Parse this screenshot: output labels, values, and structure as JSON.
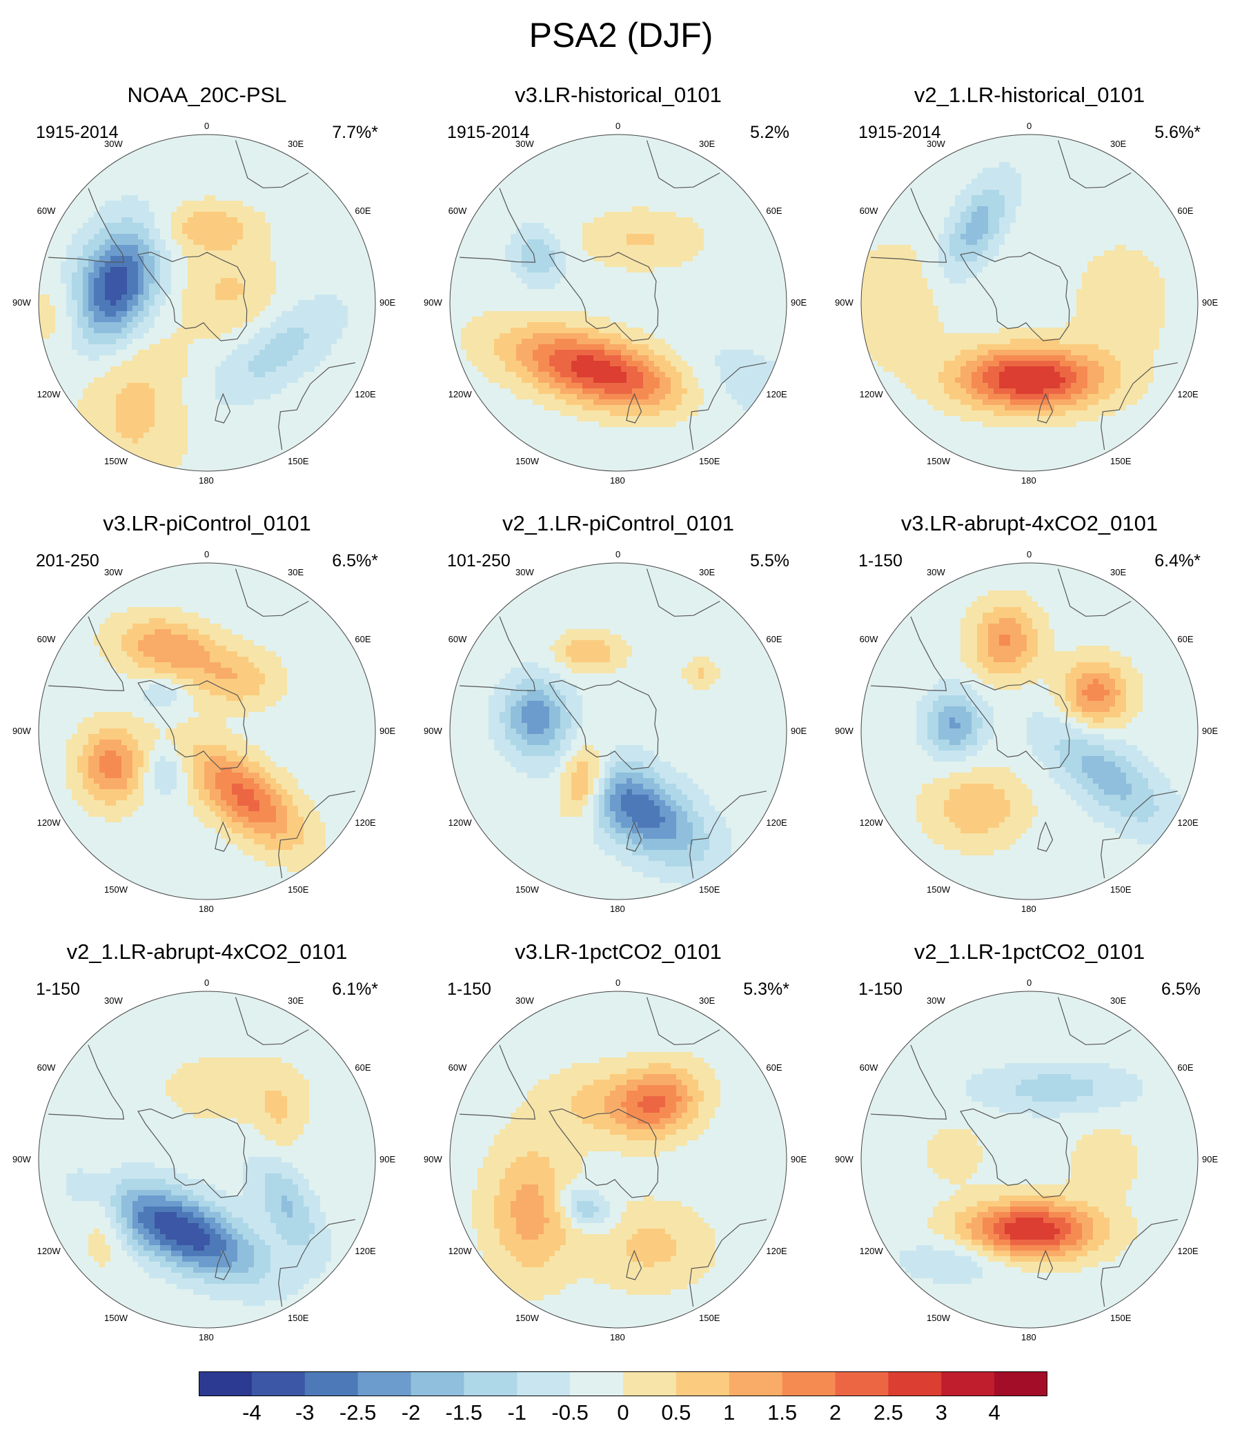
{
  "figure_title": "PSA2 (DJF)",
  "colors": {
    "-4": "#2c3a92",
    "-3": "#3b57a5",
    "-2.5": "#4e79b8",
    "-2": "#6c9ccd",
    "-1.5": "#8fbfdc",
    "-1": "#aed7e8",
    "-0.5": "#c9e6f0",
    "0": "#e1f1ef",
    "0.5": "#f7e4a8",
    "1": "#fbcc7f",
    "1.5": "#f9ac67",
    "2": "#f68b52",
    "2.5": "#ec6644",
    "3": "#dc3e31",
    "4": "#c01d2d",
    "5": "#a30d27",
    "coast": "#555555"
  },
  "lon_labels": {
    "top": "0",
    "bottom": "180",
    "left_30": "30W",
    "right_30": "30E",
    "left_60": "60W",
    "right_60": "60E",
    "left_90": "90W",
    "right_90": "90E",
    "left_120": "120W",
    "right_120": "120E",
    "left_150": "150W",
    "right_150": "150E"
  },
  "panels": [
    {
      "title": "NOAA_20C-PSL",
      "period": "1915-2014",
      "variance": "7.7%*",
      "features": [
        {
          "lon": 280,
          "r": 0.55,
          "sx": 0.16,
          "sy": 0.25,
          "rot": 20,
          "amp": -3.2
        },
        {
          "lon": 0,
          "r": 0.45,
          "sx": 0.2,
          "sy": 0.1,
          "rot": 0,
          "amp": 1.1
        },
        {
          "lon": 125,
          "r": 0.5,
          "sx": 0.3,
          "sy": 0.13,
          "rot": -35,
          "amp": -1.0
        },
        {
          "lon": 215,
          "r": 0.75,
          "sx": 0.22,
          "sy": 0.35,
          "rot": 0,
          "amp": 0.9
        },
        {
          "lon": 60,
          "r": 0.15,
          "sx": 0.2,
          "sy": 0.2,
          "rot": 0,
          "amp": 0.8
        },
        {
          "lon": 265,
          "r": 0.9,
          "sx": 0.15,
          "sy": 0.15,
          "rot": 0,
          "amp": 0.6
        }
      ]
    },
    {
      "title": "v3.LR-historical_0101",
      "period": "1915-2014",
      "variance": "5.2%",
      "features": [
        {
          "lon": 195,
          "r": 0.42,
          "sx": 0.38,
          "sy": 0.14,
          "rot": 15,
          "amp": 3.1
        },
        {
          "lon": 300,
          "r": 0.55,
          "sx": 0.1,
          "sy": 0.12,
          "rot": -30,
          "amp": -1.2
        },
        {
          "lon": 20,
          "r": 0.4,
          "sx": 0.25,
          "sy": 0.12,
          "rot": 0,
          "amp": 0.8
        },
        {
          "lon": 130,
          "r": 0.8,
          "sx": 0.3,
          "sy": 0.2,
          "rot": 0,
          "amp": -0.6
        }
      ]
    },
    {
      "title": "v2_1.LR-historical_0101",
      "period": "1915-2014",
      "variance": "5.6%*",
      "features": [
        {
          "lon": 180,
          "r": 0.45,
          "sx": 0.3,
          "sy": 0.13,
          "rot": 0,
          "amp": 3.4
        },
        {
          "lon": 325,
          "r": 0.55,
          "sx": 0.1,
          "sy": 0.22,
          "rot": 30,
          "amp": -1.5
        },
        {
          "lon": 90,
          "r": 0.55,
          "sx": 0.2,
          "sy": 0.25,
          "rot": 0,
          "amp": 0.6
        },
        {
          "lon": 270,
          "r": 0.8,
          "sx": 0.2,
          "sy": 0.25,
          "rot": 0,
          "amp": 0.7
        }
      ]
    },
    {
      "title": "v3.LR-piControl_0101",
      "period": "201-250",
      "variance": "6.5%*",
      "features": [
        {
          "lon": 150,
          "r": 0.45,
          "sx": 0.28,
          "sy": 0.13,
          "rot": 40,
          "amp": 2.4
        },
        {
          "lon": 250,
          "r": 0.6,
          "sx": 0.14,
          "sy": 0.16,
          "rot": 0,
          "amp": 2.0
        },
        {
          "lon": 335,
          "r": 0.55,
          "sx": 0.22,
          "sy": 0.12,
          "rot": 10,
          "amp": 1.7
        },
        {
          "lon": 225,
          "r": 0.35,
          "sx": 0.09,
          "sy": 0.1,
          "rot": 0,
          "amp": -1.0
        },
        {
          "lon": 30,
          "r": 0.35,
          "sx": 0.18,
          "sy": 0.12,
          "rot": 0,
          "amp": 1.1
        },
        {
          "lon": 310,
          "r": 0.35,
          "sx": 0.09,
          "sy": 0.06,
          "rot": 0,
          "amp": -0.8
        }
      ]
    },
    {
      "title": "v2_1.LR-piControl_0101",
      "period": "101-250",
      "variance": "5.5%",
      "features": [
        {
          "lon": 165,
          "r": 0.48,
          "sx": 0.3,
          "sy": 0.15,
          "rot": 35,
          "amp": -2.6
        },
        {
          "lon": 215,
          "r": 0.35,
          "sx": 0.1,
          "sy": 0.15,
          "rot": 10,
          "amp": 2.2
        },
        {
          "lon": 280,
          "r": 0.5,
          "sx": 0.14,
          "sy": 0.16,
          "rot": 0,
          "amp": -2.0
        },
        {
          "lon": 340,
          "r": 0.5,
          "sx": 0.14,
          "sy": 0.08,
          "rot": 0,
          "amp": 1.2
        },
        {
          "lon": 55,
          "r": 0.6,
          "sx": 0.07,
          "sy": 0.06,
          "rot": 0,
          "amp": 0.8
        }
      ]
    },
    {
      "title": "v3.LR-abrupt-4xCO2_0101",
      "period": "1-150",
      "variance": "6.4%*",
      "features": [
        {
          "lon": 345,
          "r": 0.55,
          "sx": 0.14,
          "sy": 0.16,
          "rot": 0,
          "amp": 1.8
        },
        {
          "lon": 60,
          "r": 0.45,
          "sx": 0.14,
          "sy": 0.14,
          "rot": 0,
          "amp": 2.0
        },
        {
          "lon": 275,
          "r": 0.45,
          "sx": 0.12,
          "sy": 0.14,
          "rot": 0,
          "amp": -1.8
        },
        {
          "lon": 120,
          "r": 0.52,
          "sx": 0.32,
          "sy": 0.13,
          "rot": 40,
          "amp": -1.5
        },
        {
          "lon": 215,
          "r": 0.55,
          "sx": 0.2,
          "sy": 0.16,
          "rot": 0,
          "amp": 1.2
        }
      ]
    },
    {
      "title": "v2_1.LR-abrupt-4xCO2_0101",
      "period": "1-150",
      "variance": "6.1%*",
      "features": [
        {
          "lon": 200,
          "r": 0.45,
          "sx": 0.34,
          "sy": 0.14,
          "rot": 25,
          "amp": -3.2
        },
        {
          "lon": 120,
          "r": 0.55,
          "sx": 0.1,
          "sy": 0.22,
          "rot": -30,
          "amp": -1.3
        },
        {
          "lon": 240,
          "r": 0.7,
          "sx": 0.1,
          "sy": 0.2,
          "rot": 0,
          "amp": 0.8
        },
        {
          "lon": 20,
          "r": 0.45,
          "sx": 0.3,
          "sy": 0.15,
          "rot": 0,
          "amp": 0.6
        },
        {
          "lon": 60,
          "r": 0.5,
          "sx": 0.1,
          "sy": 0.15,
          "rot": 0,
          "amp": 0.6
        }
      ]
    },
    {
      "title": "v3.LR-1pctCO2_0101",
      "period": "1-150",
      "variance": "5.3%*",
      "features": [
        {
          "lon": 35,
          "r": 0.42,
          "sx": 0.18,
          "sy": 0.14,
          "rot": -20,
          "amp": 2.0
        },
        {
          "lon": 240,
          "r": 0.6,
          "sx": 0.18,
          "sy": 0.28,
          "rot": 0,
          "amp": 1.5
        },
        {
          "lon": 215,
          "r": 0.35,
          "sx": 0.12,
          "sy": 0.08,
          "rot": 30,
          "amp": -1.4
        },
        {
          "lon": 345,
          "r": 0.35,
          "sx": 0.25,
          "sy": 0.15,
          "rot": 0,
          "amp": 0.9
        },
        {
          "lon": 160,
          "r": 0.55,
          "sx": 0.25,
          "sy": 0.18,
          "rot": 0,
          "amp": 0.9
        }
      ]
    },
    {
      "title": "v2_1.LR-1pctCO2_0101",
      "period": "1-150",
      "variance": "6.5%",
      "features": [
        {
          "lon": 180,
          "r": 0.42,
          "sx": 0.28,
          "sy": 0.12,
          "rot": 0,
          "amp": 3.3
        },
        {
          "lon": 20,
          "r": 0.45,
          "sx": 0.32,
          "sy": 0.1,
          "rot": 0,
          "amp": -1.0
        },
        {
          "lon": 215,
          "r": 0.72,
          "sx": 0.25,
          "sy": 0.1,
          "rot": 0,
          "amp": -0.8
        },
        {
          "lon": 275,
          "r": 0.45,
          "sx": 0.12,
          "sy": 0.12,
          "rot": 0,
          "amp": 0.6
        },
        {
          "lon": 90,
          "r": 0.45,
          "sx": 0.15,
          "sy": 0.15,
          "rot": 0,
          "amp": 0.6
        }
      ]
    }
  ],
  "colorbar": {
    "labels": [
      "-4",
      "-3",
      "-2.5",
      "-2",
      "-1.5",
      "-1",
      "-0.5",
      "0",
      "0.5",
      "1",
      "1.5",
      "2",
      "2.5",
      "3",
      "4"
    ],
    "bins": [
      "-4",
      "-3",
      "-2.5",
      "-2",
      "-1.5",
      "-1",
      "-0.5",
      "0",
      "0.5",
      "1",
      "1.5",
      "2",
      "2.5",
      "3",
      "4",
      "5"
    ]
  }
}
